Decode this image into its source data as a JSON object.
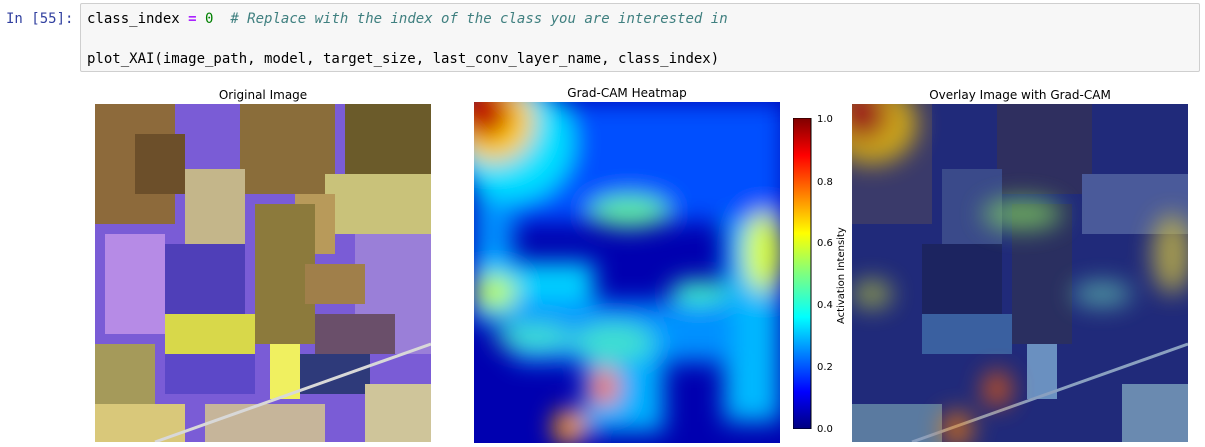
{
  "cell": {
    "prompt": "In [55]:",
    "line1_var": "class_index",
    "line1_op": "=",
    "line1_num": "0",
    "line1_comment": "# Replace with the index of the class you are interested in",
    "line2": "plot_XAI(image_path, model, target_size, last_conv_layer_name, class_index)"
  },
  "figure": {
    "titles": {
      "original": "Original Image",
      "heatmap": "Grad-CAM Heatmap",
      "overlay": "Overlay Image with Grad-CAM"
    },
    "colorbar": {
      "label": "Activation Intensity",
      "ticks": [
        "0.0",
        "0.2",
        "0.4",
        "0.6",
        "0.8",
        "1.0"
      ]
    }
  }
}
